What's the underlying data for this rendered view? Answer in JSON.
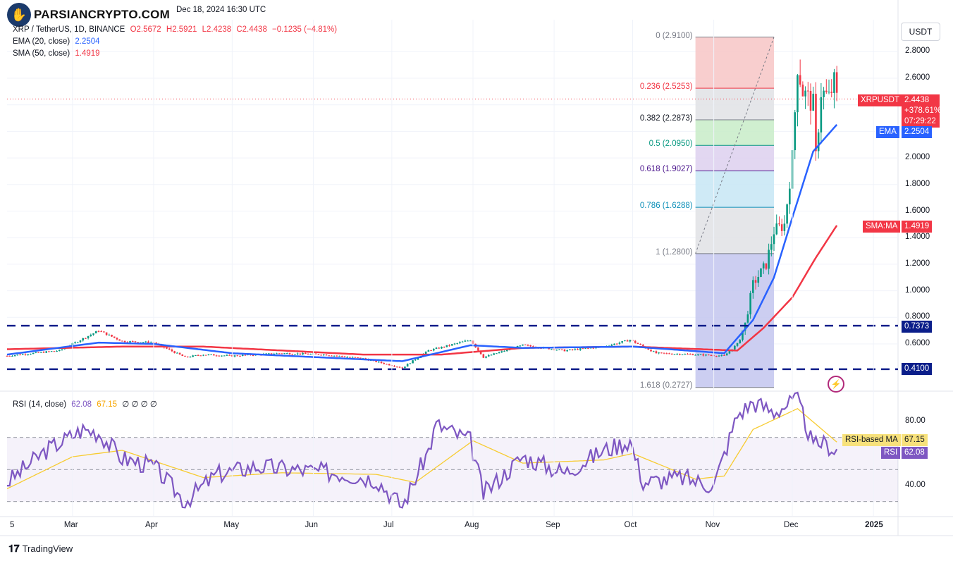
{
  "logo": {
    "text": "PARSIANCRYPTO.COM",
    "icon": "logo-icon"
  },
  "header": {
    "line1": "XRP / TetherUS, 1D, BINANCE",
    "open": "O2.5672",
    "high": "H2.5921",
    "low": "L2.4238",
    "close": "C2.4438",
    "change": "−0.1235 (−4.81%)",
    "date_partial": "Dec 18, 2024 16:30 UTC",
    "ema_label": "EMA (20, close)",
    "ema_value": "2.2504",
    "sma_label": "SMA (50, close)",
    "sma_value": "1.4919",
    "rsi_label": "RSI (14, close)",
    "rsi_value": "62.08",
    "rsi_ma_value": "67.15",
    "rsi_extra": "∅ ∅ ∅ ∅"
  },
  "currency": "USDT",
  "price_tags": {
    "symbol": "XRPUSDT",
    "price": "2.4438",
    "pct": "+378.61%",
    "countdown": "07:29:22",
    "ema_tag": "EMA",
    "ema_val": "2.2504",
    "sma_tag": "SMA:MA",
    "sma_val": "1.4919",
    "level_upper": "0.7373",
    "level_lower": "0.4100",
    "rsi_ma_tag": "RSI-based MA",
    "rsi_ma_val": "67.15",
    "rsi_tag": "RSI",
    "rsi_val": "62.08"
  },
  "fib_labels": [
    {
      "text": "0 (2.9100)",
      "color": "#787b86"
    },
    {
      "text": "0.236 (2.5253)",
      "color": "#f23645"
    },
    {
      "text": "0.382 (2.2873)",
      "color": "#131722"
    },
    {
      "text": "0.5 (2.0950)",
      "color": "#089981"
    },
    {
      "text": "0.618 (1.9027)",
      "color": "#4a148c"
    },
    {
      "text": "0.786 (1.6288)",
      "color": "#0c8fb8"
    },
    {
      "text": "1 (1.2800)",
      "color": "#787b86"
    },
    {
      "text": "1.618 (0.2727)",
      "color": "#787b86"
    }
  ],
  "y_ticks": [
    "2.8000",
    "2.6000",
    "2.4000",
    "2.2000",
    "2.0000",
    "1.8000",
    "1.6000",
    "1.4000",
    "1.2000",
    "1.0000",
    "0.8000",
    "0.6000"
  ],
  "rsi_ticks": [
    "80.00",
    "40.00"
  ],
  "x_ticks": [
    "5",
    "Mar",
    "Apr",
    "May",
    "Jun",
    "Jul",
    "Aug",
    "Sep",
    "Oct",
    "Nov",
    "Dec",
    "2025"
  ],
  "footer": {
    "brand": "TradingView"
  },
  "colors": {
    "up": "#089981",
    "down": "#f23645",
    "ema": "#2962ff",
    "sma": "#f23645",
    "rsi": "#7e57c2",
    "rsi_ma": "#f7cc32",
    "levels": "#0b1e8a"
  },
  "chart_data": {
    "type": "candlestick",
    "symbol": "XRP / TetherUS",
    "interval": "1D",
    "exchange": "BINANCE",
    "y_range": [
      0.27,
      2.96
    ],
    "x_range": [
      "2024-02-05",
      "2025-01-05"
    ],
    "horizontal_levels": [
      0.7373,
      0.41
    ],
    "fibonacci": [
      {
        "level": 0,
        "price": 2.91
      },
      {
        "level": 0.236,
        "price": 2.5253
      },
      {
        "level": 0.382,
        "price": 2.2873
      },
      {
        "level": 0.5,
        "price": 2.095
      },
      {
        "level": 0.618,
        "price": 1.9027
      },
      {
        "level": 0.786,
        "price": 1.6288
      },
      {
        "level": 1,
        "price": 1.28
      },
      {
        "level": 1.618,
        "price": 0.2727
      }
    ],
    "close_anchors": [
      [
        "2024-02-05",
        0.51
      ],
      [
        "2024-02-25",
        0.55
      ],
      [
        "2024-03-04",
        0.63
      ],
      [
        "2024-03-11",
        0.7
      ],
      [
        "2024-03-20",
        0.62
      ],
      [
        "2024-04-01",
        0.61
      ],
      [
        "2024-04-13",
        0.5
      ],
      [
        "2024-04-20",
        0.52
      ],
      [
        "2024-05-01",
        0.51
      ],
      [
        "2024-05-20",
        0.53
      ],
      [
        "2024-06-05",
        0.52
      ],
      [
        "2024-06-20",
        0.49
      ],
      [
        "2024-07-05",
        0.42
      ],
      [
        "2024-07-15",
        0.55
      ],
      [
        "2024-07-31",
        0.63
      ],
      [
        "2024-08-05",
        0.5
      ],
      [
        "2024-08-20",
        0.59
      ],
      [
        "2024-09-05",
        0.55
      ],
      [
        "2024-09-20",
        0.58
      ],
      [
        "2024-09-30",
        0.63
      ],
      [
        "2024-10-10",
        0.53
      ],
      [
        "2024-10-25",
        0.52
      ],
      [
        "2024-11-05",
        0.51
      ],
      [
        "2024-11-10",
        0.6
      ],
      [
        "2024-11-13",
        0.75
      ],
      [
        "2024-11-16",
        1.05
      ],
      [
        "2024-11-21",
        1.2
      ],
      [
        "2024-11-24",
        1.45
      ],
      [
        "2024-11-28",
        1.5
      ],
      [
        "2024-12-01",
        2.0
      ],
      [
        "2024-12-03",
        2.7
      ],
      [
        "2024-12-05",
        2.5
      ],
      [
        "2024-12-09",
        2.4
      ],
      [
        "2024-12-10",
        2.0
      ],
      [
        "2024-12-12",
        2.5
      ],
      [
        "2024-12-15",
        2.45
      ],
      [
        "2024-12-17",
        2.57
      ],
      [
        "2024-12-18",
        2.4438
      ]
    ],
    "ema20_anchors": [
      [
        "2024-02-05",
        0.52
      ],
      [
        "2024-03-11",
        0.61
      ],
      [
        "2024-04-01",
        0.6
      ],
      [
        "2024-05-01",
        0.53
      ],
      [
        "2024-07-05",
        0.47
      ],
      [
        "2024-07-31",
        0.59
      ],
      [
        "2024-08-20",
        0.57
      ],
      [
        "2024-10-01",
        0.58
      ],
      [
        "2024-11-05",
        0.53
      ],
      [
        "2024-11-16",
        0.78
      ],
      [
        "2024-11-24",
        1.1
      ],
      [
        "2024-12-01",
        1.55
      ],
      [
        "2024-12-09",
        2.05
      ],
      [
        "2024-12-18",
        2.2504
      ]
    ],
    "sma50_anchors": [
      [
        "2024-02-05",
        0.56
      ],
      [
        "2024-03-20",
        0.58
      ],
      [
        "2024-04-20",
        0.58
      ],
      [
        "2024-06-20",
        0.52
      ],
      [
        "2024-07-20",
        0.52
      ],
      [
        "2024-08-20",
        0.57
      ],
      [
        "2024-10-01",
        0.58
      ],
      [
        "2024-11-10",
        0.55
      ],
      [
        "2024-11-20",
        0.72
      ],
      [
        "2024-12-01",
        0.95
      ],
      [
        "2024-12-10",
        1.25
      ],
      [
        "2024-12-18",
        1.4919
      ]
    ],
    "rsi": {
      "range": [
        20,
        100
      ],
      "overbought": 70,
      "oversold": 30,
      "mid": 50,
      "anchors": [
        [
          "2024-02-05",
          42
        ],
        [
          "2024-02-20",
          62
        ],
        [
          "2024-03-05",
          75
        ],
        [
          "2024-03-11",
          73
        ],
        [
          "2024-03-20",
          57
        ],
        [
          "2024-04-01",
          52
        ],
        [
          "2024-04-13",
          30
        ],
        [
          "2024-04-25",
          47
        ],
        [
          "2024-05-10",
          52
        ],
        [
          "2024-05-25",
          50
        ],
        [
          "2024-06-10",
          48
        ],
        [
          "2024-06-25",
          44
        ],
        [
          "2024-07-05",
          27
        ],
        [
          "2024-07-15",
          62
        ],
        [
          "2024-07-18",
          78
        ],
        [
          "2024-07-31",
          68
        ],
        [
          "2024-08-05",
          35
        ],
        [
          "2024-08-20",
          58
        ],
        [
          "2024-09-05",
          48
        ],
        [
          "2024-09-20",
          62
        ],
        [
          "2024-09-30",
          68
        ],
        [
          "2024-10-05",
          42
        ],
        [
          "2024-10-20",
          45
        ],
        [
          "2024-11-01",
          40
        ],
        [
          "2024-11-10",
          84
        ],
        [
          "2024-11-16",
          92
        ],
        [
          "2024-11-24",
          86
        ],
        [
          "2024-12-03",
          94
        ],
        [
          "2024-12-09",
          64
        ],
        [
          "2024-12-12",
          67
        ],
        [
          "2024-12-18",
          62.08
        ]
      ],
      "ma_anchors": [
        [
          "2024-02-05",
          38
        ],
        [
          "2024-03-01",
          58
        ],
        [
          "2024-03-20",
          62
        ],
        [
          "2024-04-20",
          45
        ],
        [
          "2024-05-20",
          48
        ],
        [
          "2024-06-25",
          47
        ],
        [
          "2024-07-10",
          42
        ],
        [
          "2024-08-01",
          68
        ],
        [
          "2024-08-20",
          54
        ],
        [
          "2024-09-20",
          56
        ],
        [
          "2024-10-01",
          60
        ],
        [
          "2024-10-25",
          44
        ],
        [
          "2024-11-05",
          46
        ],
        [
          "2024-11-16",
          75
        ],
        [
          "2024-12-03",
          88
        ],
        [
          "2024-12-18",
          67.15
        ]
      ]
    }
  }
}
